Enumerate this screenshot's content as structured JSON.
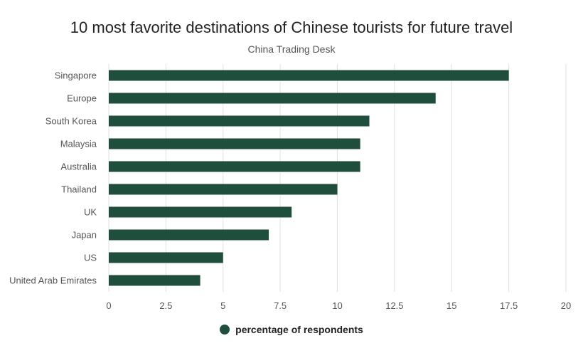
{
  "chart_data": {
    "type": "bar",
    "orientation": "horizontal",
    "title": "10 most favorite destinations of Chinese tourists for future travel",
    "subtitle": "China Trading Desk",
    "categories": [
      "Singapore",
      "Europe",
      "South Korea",
      "Malaysia",
      "Australia",
      "Thailand",
      "UK",
      "Japan",
      "US",
      "United Arab Emirates"
    ],
    "series": [
      {
        "name": "percentage of respondents",
        "values": [
          17.5,
          14.3,
          11.4,
          11,
          11,
          10,
          8,
          7,
          5,
          4
        ]
      }
    ],
    "xlim": [
      0,
      20
    ],
    "xticks": [
      "0",
      "2.5",
      "5",
      "7.5",
      "10",
      "12.5",
      "15",
      "17.5",
      "20"
    ],
    "grid": true,
    "legend_position": "bottom",
    "colors": {
      "bar": "#1f4e3d",
      "grid": "#e0e0e0",
      "axis_text": "#555555"
    }
  }
}
